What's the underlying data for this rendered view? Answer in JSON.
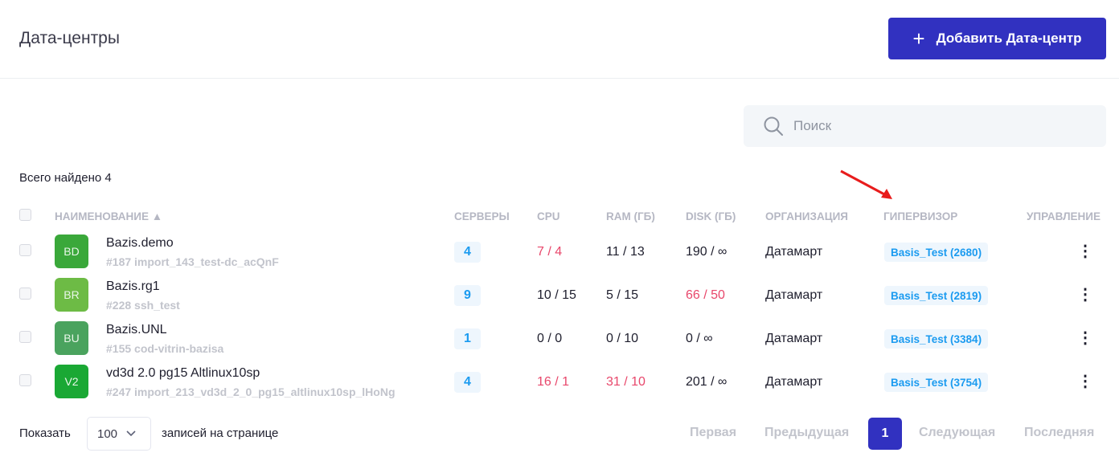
{
  "header": {
    "title": "Дата-центры",
    "add_button": "Добавить Дата-центр",
    "add_icon": "+"
  },
  "search": {
    "placeholder": "Поиск",
    "value": ""
  },
  "total": "Всего найдено 4",
  "columns": [
    "НАИМЕНОВАНИЕ ▲",
    "СЕРВЕРЫ",
    "CPU",
    "RAM (ГБ)",
    "DISK (ГБ)",
    "ОРГАНИЗАЦИЯ",
    "ГИПЕРВИЗОР",
    "УПРАВЛЕНИЕ"
  ],
  "rows": [
    {
      "initials": "BD",
      "color": "#3aa83a",
      "name": "Bazis.demo",
      "sub": "#187 import_143_test-dc_acQnF",
      "servers": "4",
      "cpu": "7 / 4",
      "cpu_over": true,
      "ram": "11 / 13",
      "ram_over": false,
      "disk": "190 / ∞",
      "disk_over": false,
      "org": "Датамарт",
      "hypervisor": "Basis_Test (2680)"
    },
    {
      "initials": "BR",
      "color": "#6dbb45",
      "name": "Bazis.rg1",
      "sub": "#228 ssh_test",
      "servers": "9",
      "cpu": "10 / 15",
      "cpu_over": false,
      "ram": "5 / 15",
      "ram_over": false,
      "disk": "66 / 50",
      "disk_over": true,
      "org": "Датамарт",
      "hypervisor": "Basis_Test (2819)"
    },
    {
      "initials": "BU",
      "color": "#4aa35e",
      "name": "Bazis.UNL",
      "sub": "#155 cod-vitrin-bazisa",
      "servers": "1",
      "cpu": "0 / 0",
      "cpu_over": false,
      "ram": "0 / 10",
      "ram_over": false,
      "disk": "0 / ∞",
      "disk_over": false,
      "org": "Датамарт",
      "hypervisor": "Basis_Test (3384)"
    },
    {
      "initials": "V2",
      "color": "#1aa834",
      "name": "vd3d 2.0 pg15 Altlinux10sp",
      "sub": "#247 import_213_vd3d_2_0_pg15_altlinux10sp_lHoNg",
      "servers": "4",
      "cpu": "16 / 1",
      "cpu_over": true,
      "ram": "31 / 10",
      "ram_over": true,
      "disk": "201 / ∞",
      "disk_over": false,
      "org": "Датамарт",
      "hypervisor": "Basis_Test (3754)"
    }
  ],
  "pagination": {
    "show_label": "Показать",
    "page_size": "100",
    "per_page_label": "записей на странице",
    "first": "Первая",
    "prev": "Предыдущая",
    "current": "1",
    "next": "Следующая",
    "last": "Последняя"
  },
  "colors": {
    "accent": "#3131c0",
    "link": "#1b9bf0",
    "over_limit": "#e8476b",
    "annotation_arrow": "#e81c1c"
  }
}
